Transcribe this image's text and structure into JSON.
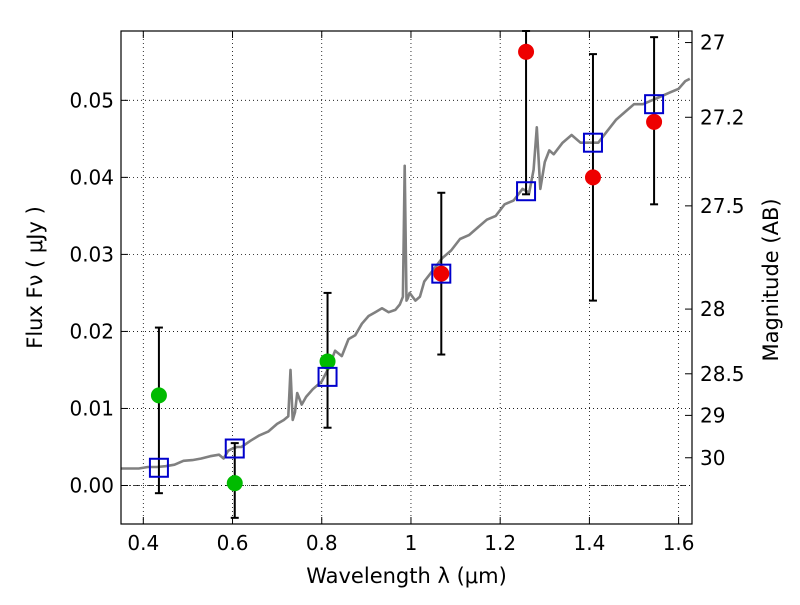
{
  "chart_data": {
    "type": "scatter",
    "title": "",
    "xlabel": "Wavelength  λ (μm)",
    "ylabel": "Flux  Fν  ( μJy )",
    "y2label": "Magnitude (AB)",
    "xlim": [
      0.35,
      1.63
    ],
    "ylim": [
      -0.005,
      0.059
    ],
    "grid": true,
    "legend": "none",
    "x_ticks": [
      0.4,
      0.6,
      0.8,
      1.0,
      1.2,
      1.4,
      1.6
    ],
    "x_tick_labels": [
      "0.4",
      "0.6",
      "0.8",
      "1",
      "1.2",
      "1.4",
      "1.6"
    ],
    "y_ticks": [
      0.0,
      0.01,
      0.02,
      0.03,
      0.04,
      0.05
    ],
    "y_tick_labels": [
      "0.00",
      "0.01",
      "0.02",
      "0.03",
      "0.04",
      "0.05"
    ],
    "y2_ticks": [
      {
        "label": "27",
        "flux": 0.0575
      },
      {
        "label": "27.2",
        "flux": 0.0478
      },
      {
        "label": "27.5",
        "flux": 0.0363
      },
      {
        "label": "28",
        "flux": 0.0229
      },
      {
        "label": "28.5",
        "flux": 0.0145
      },
      {
        "label": "29",
        "flux": 0.0091
      },
      {
        "label": "30",
        "flux": 0.0036
      }
    ],
    "series": [
      {
        "kind": "line",
        "color": "#808080",
        "x": [
          0.35,
          0.37,
          0.39,
          0.41,
          0.43,
          0.45,
          0.47,
          0.49,
          0.51,
          0.53,
          0.55,
          0.57,
          0.58,
          0.59,
          0.6,
          0.61,
          0.62,
          0.64,
          0.66,
          0.68,
          0.7,
          0.715,
          0.725,
          0.73,
          0.735,
          0.74,
          0.745,
          0.755,
          0.765,
          0.78,
          0.8,
          0.815,
          0.83,
          0.845,
          0.86,
          0.875,
          0.89,
          0.905,
          0.92,
          0.935,
          0.95,
          0.965,
          0.975,
          0.982,
          0.986,
          0.99,
          0.993,
          0.997,
          1.01,
          1.02,
          1.03,
          1.05,
          1.07,
          1.09,
          1.11,
          1.13,
          1.15,
          1.17,
          1.19,
          1.21,
          1.23,
          1.25,
          1.265,
          1.275,
          1.282,
          1.29,
          1.3,
          1.31,
          1.32,
          1.34,
          1.36,
          1.38,
          1.4,
          1.42,
          1.44,
          1.46,
          1.48,
          1.5,
          1.52,
          1.54,
          1.56,
          1.58,
          1.6,
          1.615,
          1.625
        ],
        "y": [
          0.0022,
          0.0022,
          0.0022,
          0.0024,
          0.0024,
          0.0025,
          0.0027,
          0.0032,
          0.0033,
          0.0035,
          0.0038,
          0.004,
          0.0035,
          0.0045,
          0.0048,
          0.005,
          0.005,
          0.0058,
          0.0065,
          0.007,
          0.008,
          0.0085,
          0.009,
          0.015,
          0.0085,
          0.0095,
          0.012,
          0.0105,
          0.0115,
          0.0125,
          0.0135,
          0.0152,
          0.0175,
          0.0168,
          0.019,
          0.0195,
          0.021,
          0.022,
          0.0225,
          0.023,
          0.0225,
          0.0228,
          0.0235,
          0.0245,
          0.0415,
          0.024,
          0.0243,
          0.025,
          0.024,
          0.0245,
          0.0265,
          0.028,
          0.0295,
          0.0305,
          0.032,
          0.0325,
          0.0335,
          0.0345,
          0.035,
          0.0365,
          0.037,
          0.0385,
          0.038,
          0.041,
          0.0465,
          0.0385,
          0.042,
          0.0435,
          0.043,
          0.0445,
          0.0455,
          0.0445,
          0.0445,
          0.0445,
          0.046,
          0.0475,
          0.0485,
          0.0495,
          0.0495,
          0.05,
          0.0505,
          0.051,
          0.0515,
          0.0525,
          0.0528
        ]
      },
      {
        "kind": "errorbar",
        "color": "#000000",
        "x": [
          0.435,
          0.605,
          0.813,
          1.068,
          1.258,
          1.408,
          1.545
        ],
        "y_low": [
          -0.001,
          -0.0042,
          0.0075,
          0.017,
          0.0378,
          0.024,
          0.0365
        ],
        "y_high": [
          0.0205,
          0.0055,
          0.025,
          0.038,
          0.059,
          0.056,
          0.0582
        ]
      },
      {
        "kind": "points",
        "marker": "circle",
        "color": "#00bb00",
        "x": [
          0.435,
          0.605,
          0.813
        ],
        "y": [
          0.0117,
          0.0003,
          0.0161
        ]
      },
      {
        "kind": "points",
        "marker": "circle",
        "color": "#ee0000",
        "x": [
          1.068,
          1.258,
          1.408,
          1.545
        ],
        "y": [
          0.0275,
          0.0563,
          0.04,
          0.0472
        ]
      },
      {
        "kind": "points",
        "marker": "square-open",
        "color": "#0000cc",
        "x": [
          0.435,
          0.605,
          0.813,
          1.068,
          1.258,
          1.408,
          1.545
        ],
        "y": [
          0.0023,
          0.0048,
          0.0141,
          0.0275,
          0.0382,
          0.0445,
          0.0495
        ]
      }
    ],
    "reference_lines": [
      {
        "y": 0.0,
        "style": "dashdot",
        "color": "#000000"
      }
    ]
  }
}
